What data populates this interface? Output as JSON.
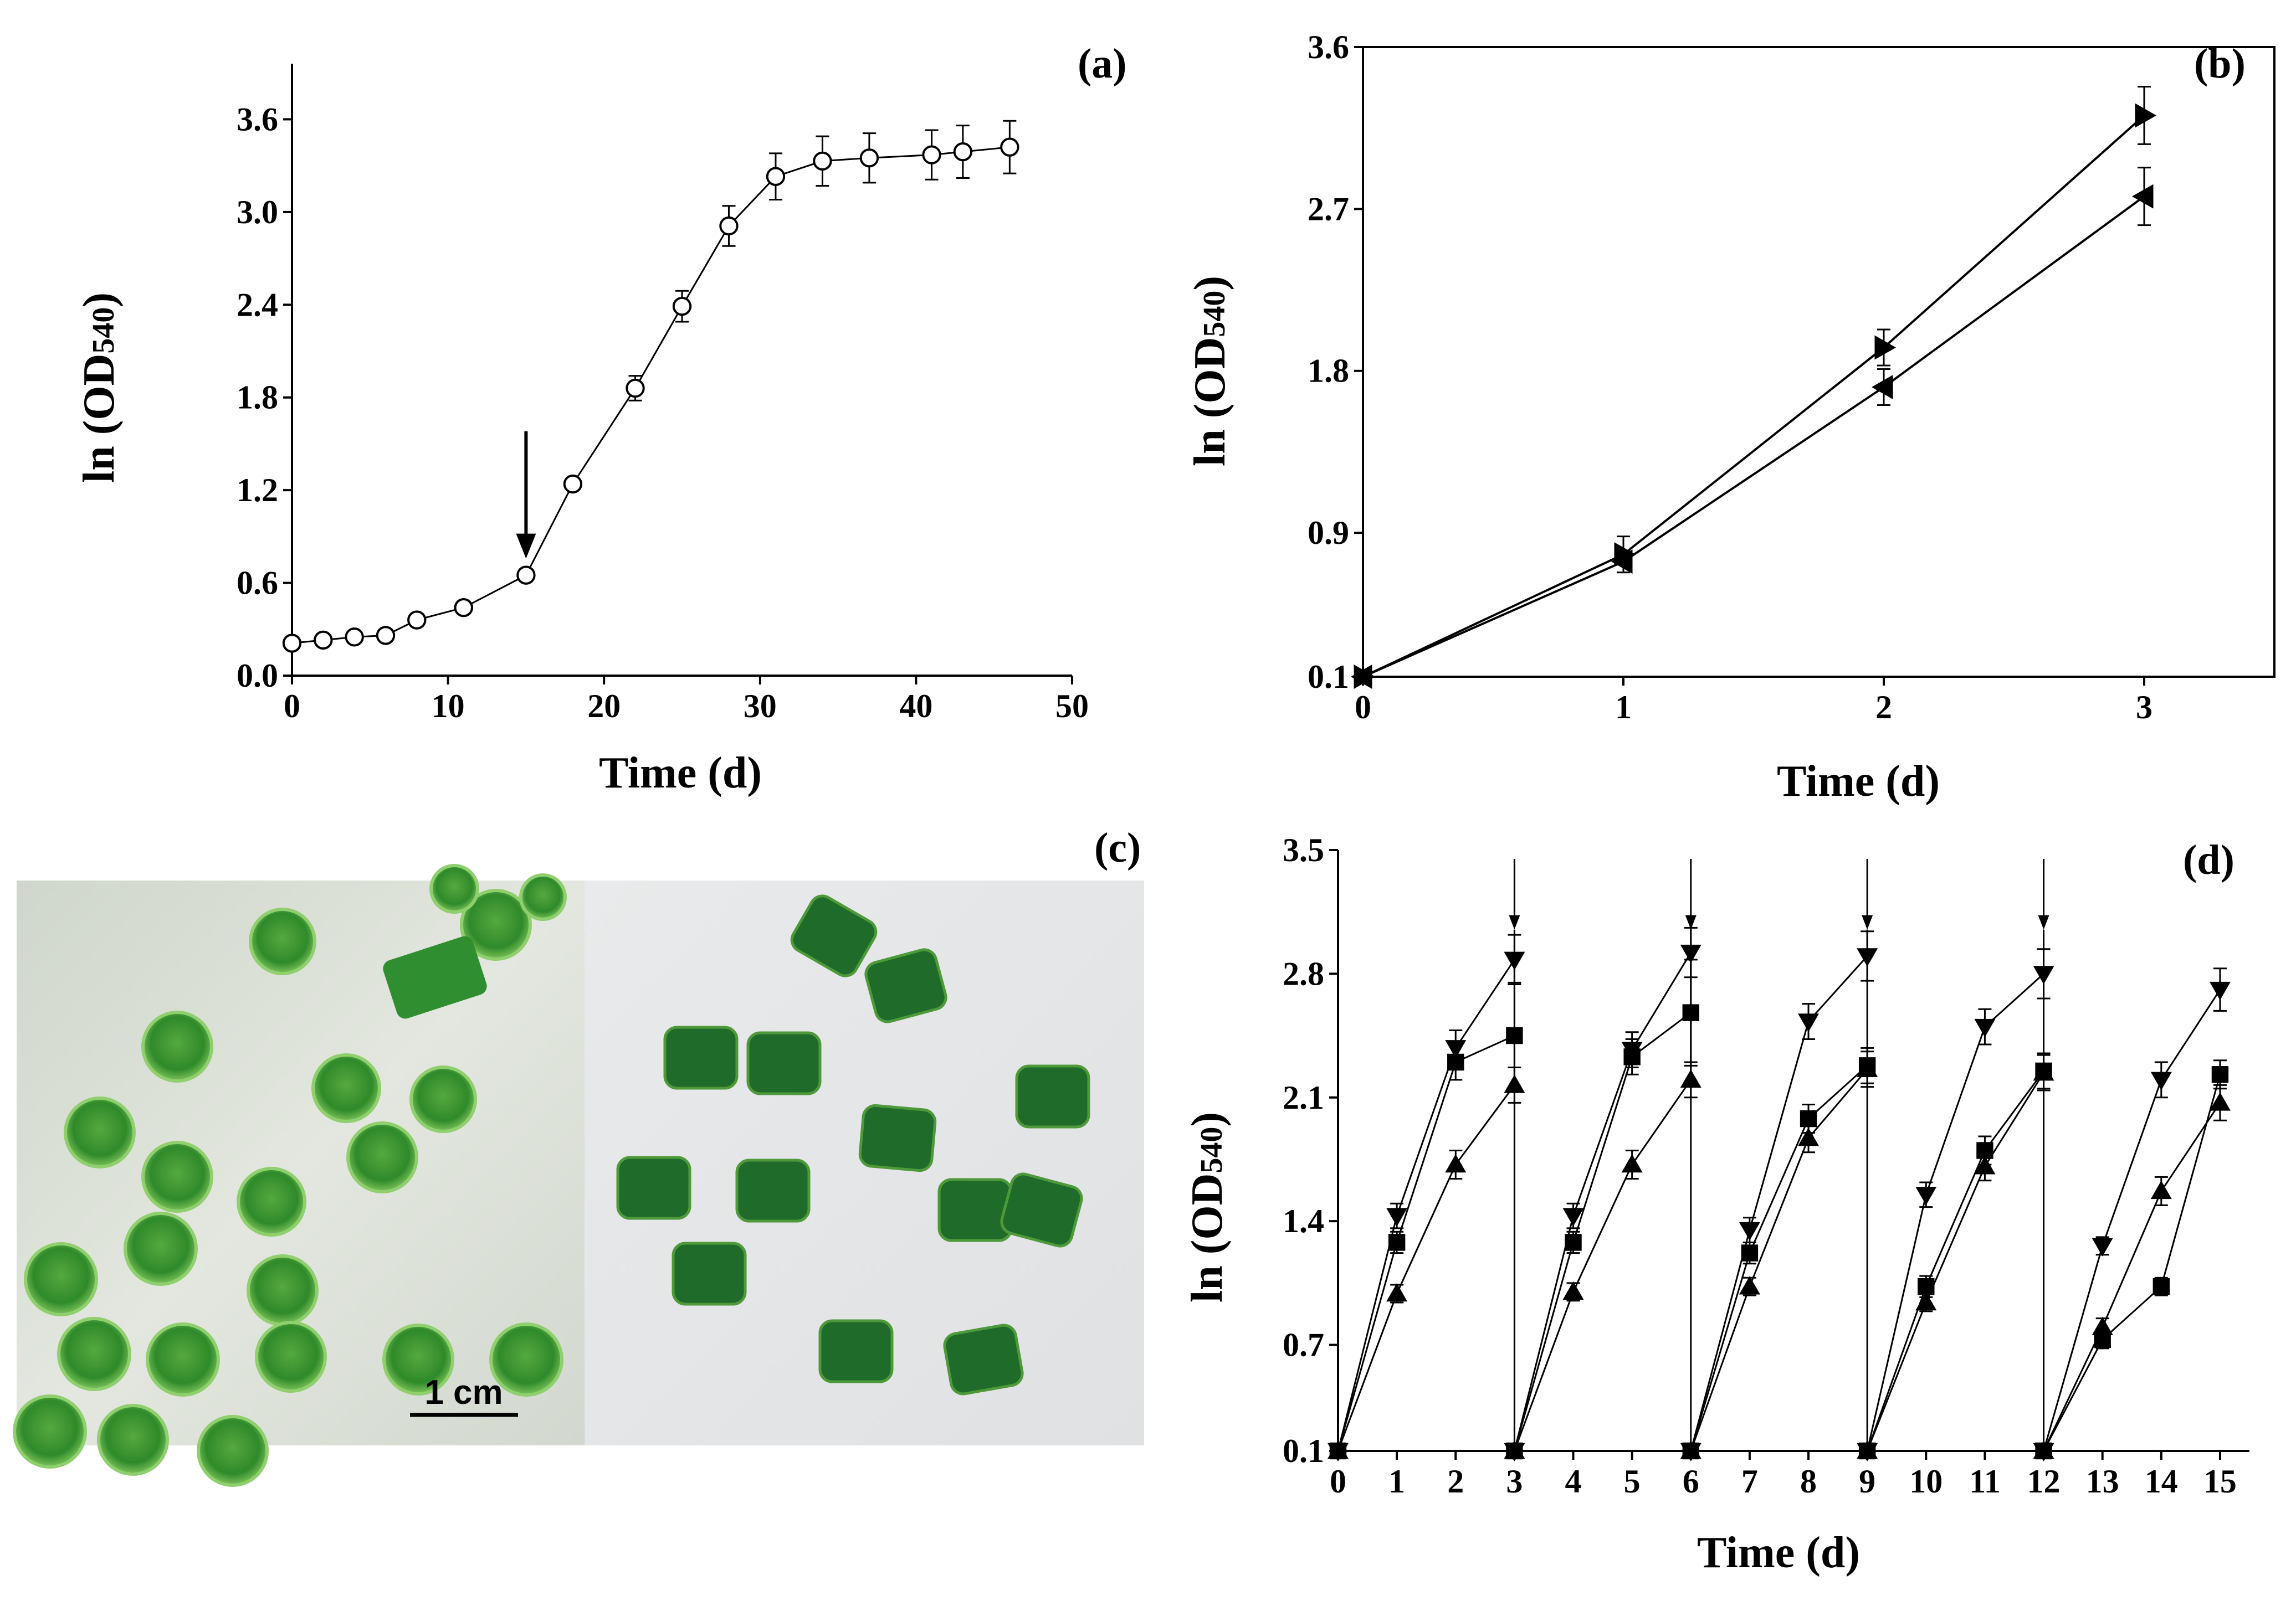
{
  "figure": {
    "photo_scale_label": "1 cm",
    "colors": {
      "ink": "#000000",
      "photo_left_bg": "#d8ddd5",
      "photo_right_bg": "#e4e6e7",
      "bead": "#2c8a28",
      "bead_light": "#6db84f",
      "piece": "#1f6b2a"
    }
  },
  "chart_data": [
    {
      "panel": "(a)",
      "type": "line",
      "xlabel": "Time (d)",
      "ylabel_main": "ln (OD",
      "ylabel_sub": "540",
      "ylabel_close": ")",
      "xlim": [
        0,
        50
      ],
      "ylim": [
        0,
        3.96
      ],
      "xticks": [
        0,
        10,
        20,
        30,
        40,
        50
      ],
      "yticks": [
        0.0,
        0.6,
        1.2,
        1.8,
        2.4,
        3.0,
        3.6
      ],
      "ytick_labels": [
        "0.0",
        "0.6",
        "1.2",
        "1.8",
        "2.4",
        "3.0",
        "3.6"
      ],
      "series": [
        {
          "name": "growth",
          "marker": "open-circle",
          "x": [
            0,
            2,
            4,
            6,
            8,
            11,
            15,
            18,
            22,
            25,
            28,
            31,
            34,
            37,
            41,
            43,
            46
          ],
          "y": [
            0.21,
            0.23,
            0.25,
            0.26,
            0.36,
            0.44,
            0.65,
            1.24,
            1.86,
            2.39,
            2.91,
            3.23,
            3.33,
            3.35,
            3.37,
            3.39,
            3.42
          ],
          "err": [
            0.04,
            0.04,
            0.04,
            0.04,
            0.04,
            0.04,
            0.04,
            0.04,
            0.08,
            0.1,
            0.13,
            0.15,
            0.16,
            0.16,
            0.16,
            0.17,
            0.17
          ]
        }
      ],
      "annotations": [
        {
          "type": "arrow",
          "x": 15,
          "y": 0.65,
          "meaning": "down-arrow above point"
        }
      ]
    },
    {
      "panel": "(b)",
      "type": "line",
      "xlabel": "Time (d)",
      "ylabel_main": "ln (OD",
      "ylabel_sub": "540",
      "ylabel_close": ")",
      "xlim": [
        0,
        3.5
      ],
      "ylim": [
        0.1,
        3.6
      ],
      "xticks": [
        0,
        1,
        2,
        3
      ],
      "yticks": [
        0.1,
        0.9,
        1.8,
        2.7,
        3.6
      ],
      "ytick_labels": [
        "0.1",
        "0.9",
        "1.8",
        "2.7",
        "3.6"
      ],
      "series": [
        {
          "name": "right-triangle",
          "marker": "triangle-right",
          "x": [
            0,
            1,
            2,
            3
          ],
          "y": [
            0.1,
            0.78,
            1.93,
            3.22
          ],
          "err": [
            0.03,
            0.1,
            0.1,
            0.16
          ]
        },
        {
          "name": "left-triangle",
          "marker": "triangle-left",
          "x": [
            0,
            1,
            2,
            3
          ],
          "y": [
            0.1,
            0.74,
            1.71,
            2.77
          ],
          "err": [
            0.03,
            0.06,
            0.1,
            0.16
          ]
        }
      ]
    },
    {
      "panel": "(d)",
      "type": "line",
      "xlabel": "Time (d)",
      "ylabel_main": "ln (OD",
      "ylabel_sub": "540",
      "ylabel_close": ")",
      "xlim": [
        0,
        15.5
      ],
      "ylim": [
        0.1,
        3.5
      ],
      "xticks": [
        0,
        1,
        2,
        3,
        4,
        5,
        6,
        7,
        8,
        9,
        10,
        11,
        12,
        13,
        14,
        15
      ],
      "yticks": [
        0.1,
        0.7,
        1.4,
        2.1,
        2.8,
        3.5
      ],
      "ytick_labels": [
        "0.1",
        "0.7",
        "1.4",
        "2.1",
        "2.8",
        "3.5"
      ],
      "cycle_boundaries": [
        3,
        6,
        9,
        12
      ],
      "series": [
        {
          "name": "inverted-triangle",
          "marker": "triangle-down",
          "segments": [
            {
              "x": [
                0,
                1,
                2,
                3
              ],
              "y": [
                0.1,
                1.43,
                2.38,
                2.88
              ],
              "err": [
                0,
                0.07,
                0.1,
                0.14
              ]
            },
            {
              "x": [
                3,
                4,
                5,
                6
              ],
              "y": [
                0.1,
                1.43,
                2.37,
                2.92
              ],
              "err": [
                0,
                0.07,
                0.1,
                0.14
              ]
            },
            {
              "x": [
                6,
                7,
                8,
                9
              ],
              "y": [
                0.1,
                1.35,
                2.53,
                2.9
              ],
              "err": [
                0,
                0.07,
                0.1,
                0.14
              ]
            },
            {
              "x": [
                9,
                10,
                11,
                12
              ],
              "y": [
                0.1,
                1.55,
                2.5,
                2.8
              ],
              "err": [
                0,
                0.07,
                0.1,
                0.14
              ]
            },
            {
              "x": [
                12,
                13,
                14,
                15
              ],
              "y": [
                0.1,
                1.26,
                2.2,
                2.71
              ],
              "err": [
                0,
                0.05,
                0.1,
                0.12
              ]
            }
          ]
        },
        {
          "name": "square",
          "marker": "square",
          "segments": [
            {
              "x": [
                0,
                1,
                2,
                3
              ],
              "y": [
                0.1,
                1.28,
                2.3,
                2.45
              ],
              "err": [
                0,
                0.06,
                0.1,
                0.3
              ]
            },
            {
              "x": [
                3,
                4,
                5,
                6
              ],
              "y": [
                0.1,
                1.28,
                2.33,
                2.58
              ],
              "err": [
                0,
                0.06,
                0.1,
                0.3
              ]
            },
            {
              "x": [
                6,
                7,
                8,
                9
              ],
              "y": [
                0.1,
                1.22,
                1.98,
                2.28
              ],
              "err": [
                0,
                0.06,
                0.08,
                0.1
              ]
            },
            {
              "x": [
                9,
                10,
                11,
                12
              ],
              "y": [
                0.1,
                1.03,
                1.8,
                2.25
              ],
              "err": [
                0,
                0.06,
                0.08,
                0.1
              ]
            },
            {
              "x": [
                12,
                13,
                14,
                15
              ],
              "y": [
                0.1,
                0.73,
                1.03,
                2.23
              ],
              "err": [
                0,
                0.05,
                0.05,
                0.08
              ]
            }
          ]
        },
        {
          "name": "triangle-up",
          "marker": "triangle-up",
          "segments": [
            {
              "x": [
                0,
                1,
                2,
                3
              ],
              "y": [
                0.1,
                0.99,
                1.72,
                2.17
              ],
              "err": [
                0,
                0.05,
                0.08,
                0.1
              ]
            },
            {
              "x": [
                3,
                4,
                5,
                6
              ],
              "y": [
                0.1,
                1.0,
                1.72,
                2.2
              ],
              "err": [
                0,
                0.05,
                0.08,
                0.1
              ]
            },
            {
              "x": [
                6,
                7,
                8,
                9
              ],
              "y": [
                0.1,
                1.03,
                1.87,
                2.26
              ],
              "err": [
                0,
                0.05,
                0.08,
                0.1
              ]
            },
            {
              "x": [
                9,
                10,
                11,
                12
              ],
              "y": [
                0.1,
                0.94,
                1.71,
                2.24
              ],
              "err": [
                0,
                0.05,
                0.08,
                0.1
              ]
            },
            {
              "x": [
                12,
                13,
                14,
                15
              ],
              "y": [
                0.1,
                0.8,
                1.57,
                2.07
              ],
              "err": [
                0,
                0.05,
                0.08,
                0.1
              ]
            }
          ]
        }
      ]
    }
  ],
  "photo_panel": {
    "panel": "(c)"
  }
}
